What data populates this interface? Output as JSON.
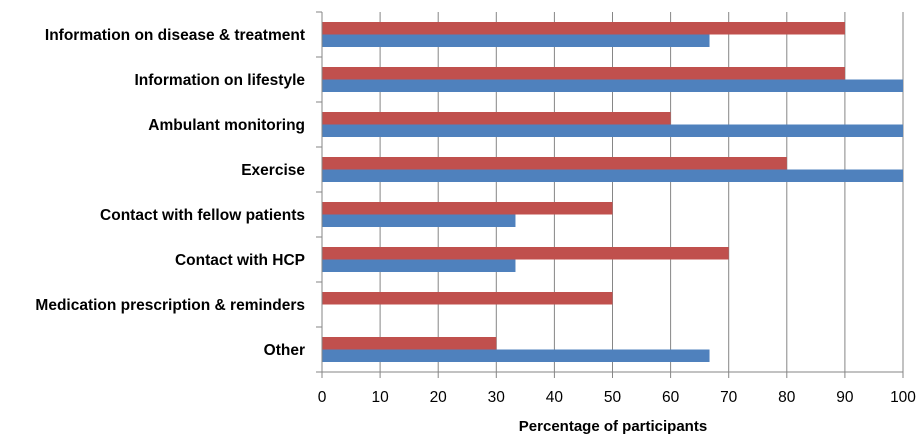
{
  "chart_data": {
    "type": "bar",
    "orientation": "horizontal",
    "title": "",
    "xlabel": "Percentage of participants",
    "ylabel": "",
    "xlim": [
      0,
      100
    ],
    "xticks": [
      0,
      10,
      20,
      30,
      40,
      50,
      60,
      70,
      80,
      90,
      100
    ],
    "grid": "vertical",
    "legend": "none",
    "categories": [
      "Information on disease & treatment",
      "Information on lifestyle",
      "Ambulant monitoring",
      "Exercise",
      "Contact with fellow patients",
      "Contact with HCP",
      "Medication prescription & reminders",
      "Other"
    ],
    "series": [
      {
        "color": "#c0504d",
        "values": [
          90,
          90,
          60,
          80,
          50,
          70,
          50,
          30
        ]
      },
      {
        "color": "#4f81bd",
        "values": [
          66.7,
          100,
          100,
          100,
          33.3,
          33.3,
          0,
          66.7
        ]
      }
    ]
  }
}
